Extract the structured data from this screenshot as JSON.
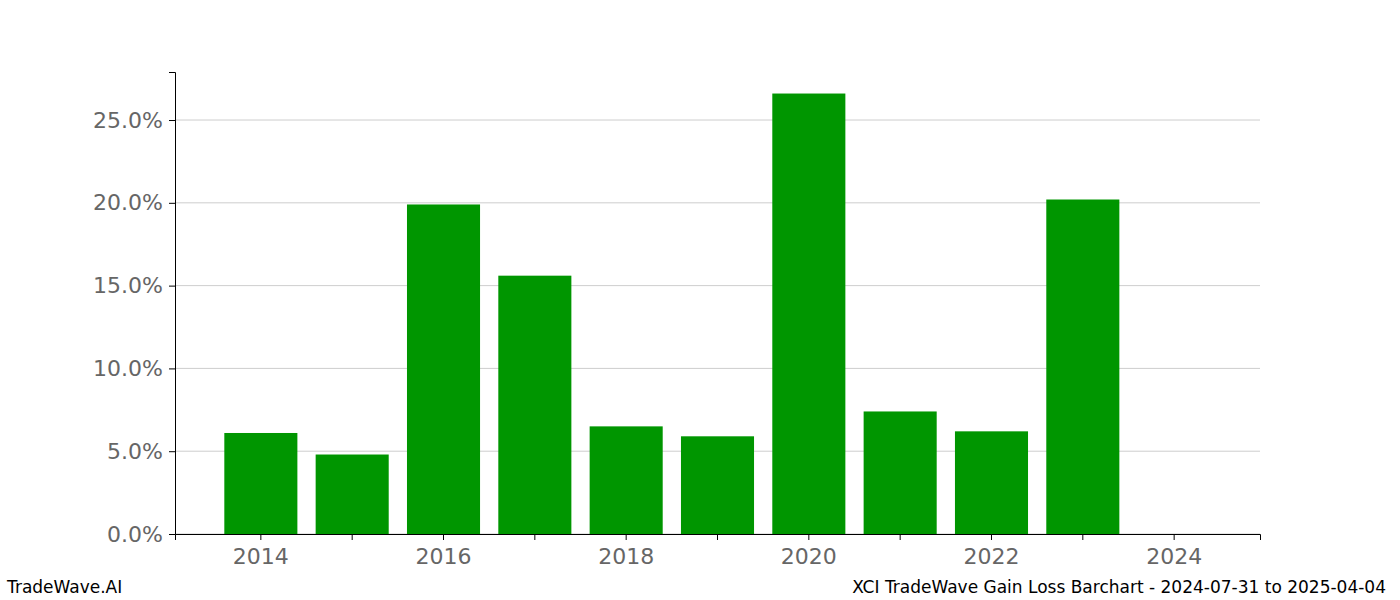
{
  "chart_data": {
    "type": "bar",
    "title": "XCI TradeWave Gain Loss Barchart - 2024-07-31 to 2025-04-04",
    "credit": "TradeWave.AI",
    "categories": [
      "2014",
      null,
      "2016",
      null,
      "2018",
      null,
      "2020",
      null,
      "2022",
      null,
      "2024"
    ],
    "values": [
      6.1,
      4.8,
      19.9,
      15.6,
      6.5,
      5.9,
      26.6,
      7.4,
      6.2,
      20.2,
      null
    ],
    "color": "#009600",
    "ylim": [
      0,
      27.9
    ],
    "yticks": [
      {
        "value": 0,
        "label": "0.0%"
      },
      {
        "value": 5,
        "label": "5.0%"
      },
      {
        "value": 10,
        "label": "10.0%"
      },
      {
        "value": 15,
        "label": "15.0%"
      },
      {
        "value": 20,
        "label": "20.0%"
      },
      {
        "value": 25,
        "label": "25.0%"
      }
    ],
    "grid": true
  }
}
